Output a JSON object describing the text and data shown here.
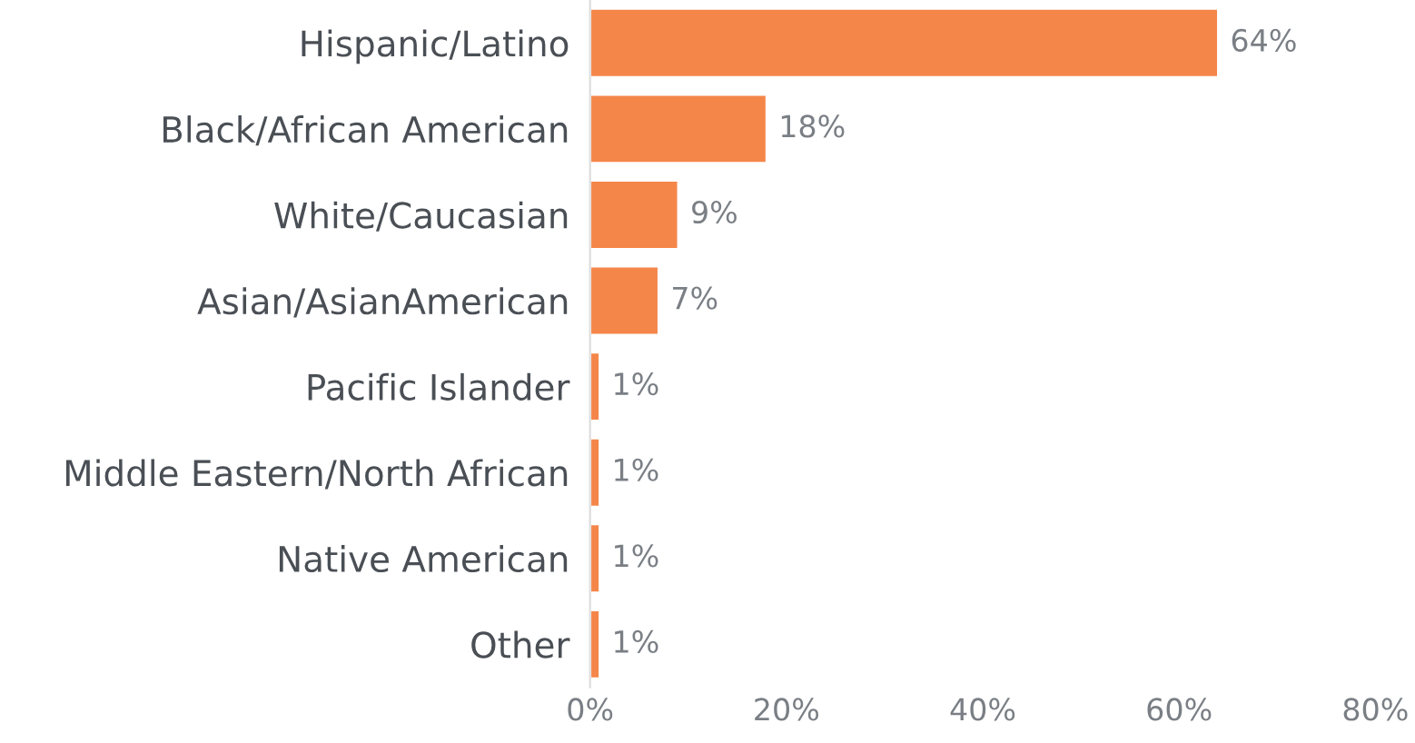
{
  "chart_data": {
    "type": "bar",
    "orientation": "horizontal",
    "categories": [
      "Hispanic/Latino",
      "Black/African American",
      "White/Caucasian",
      "Asian/AsianAmerican",
      "Pacific Islander",
      "Middle Eastern/North African",
      "Native American",
      "Other"
    ],
    "values": [
      64,
      18,
      9,
      7,
      1,
      1,
      1,
      1
    ],
    "value_labels": [
      "64%",
      "18%",
      "9%",
      "7%",
      "1%",
      "1%",
      "1%",
      "1%"
    ],
    "color": "#f5864a",
    "xlim": [
      0,
      80
    ],
    "xticks": [
      {
        "value": 0,
        "label": "0%"
      },
      {
        "value": 20,
        "label": "20%"
      },
      {
        "value": 40,
        "label": "40%"
      },
      {
        "value": 60,
        "label": "60%"
      },
      {
        "value": 80,
        "label": "80%"
      }
    ],
    "grid": false,
    "legend": false
  }
}
